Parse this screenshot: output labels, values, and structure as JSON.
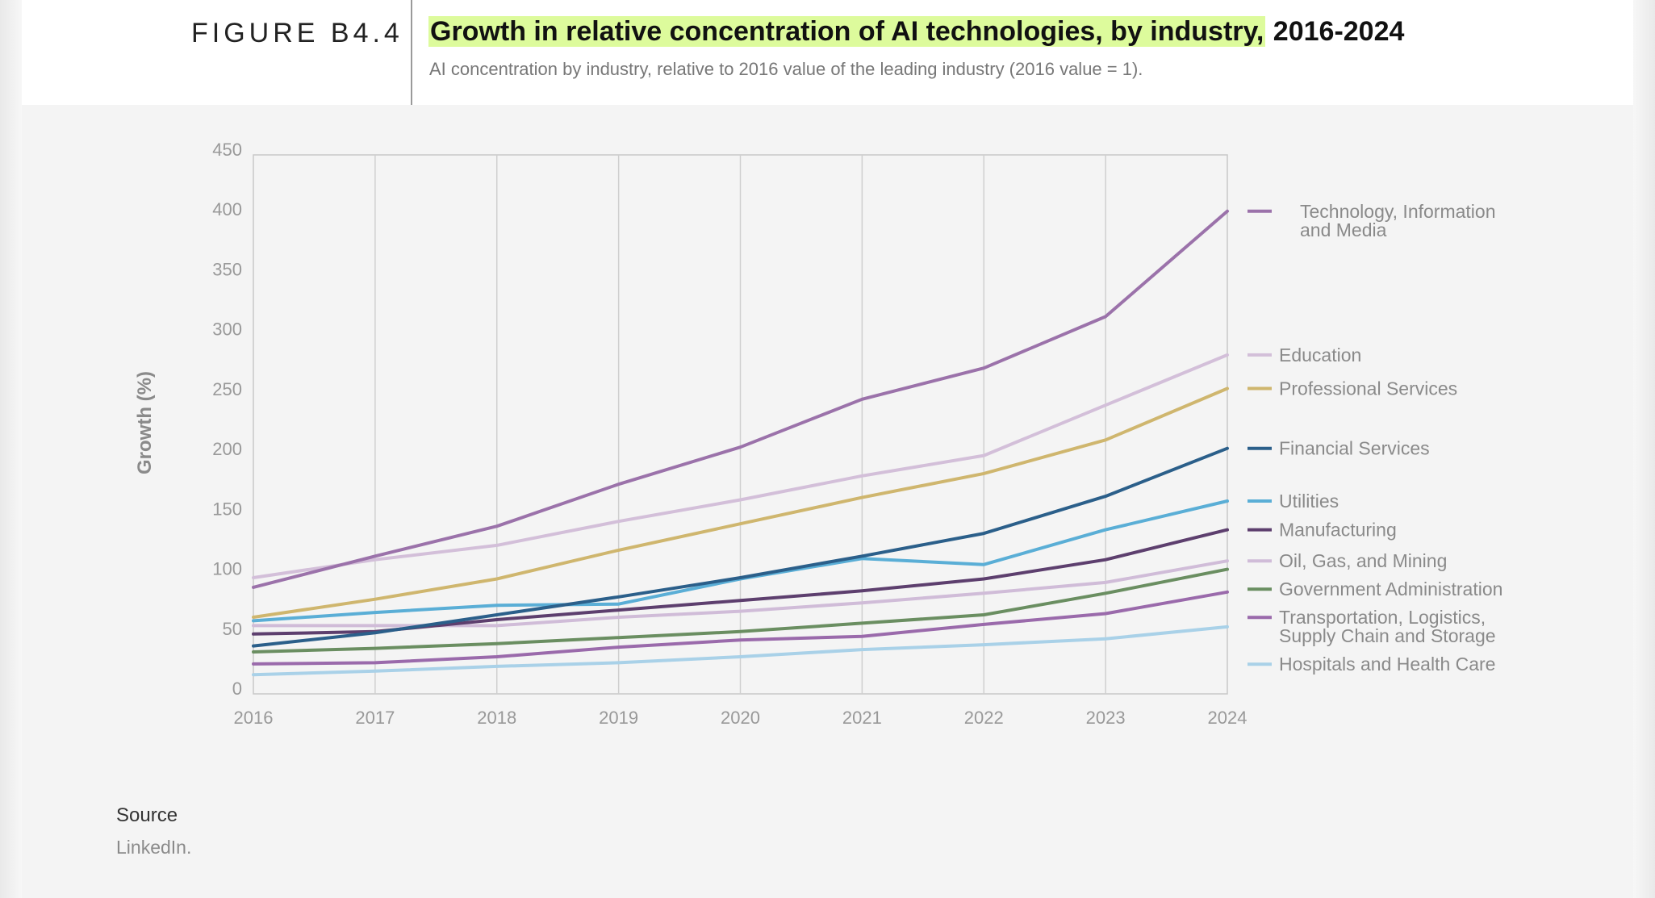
{
  "figure_label": "FIGURE B4.4",
  "title_highlight": "Growth in relative concentration of AI technologies, by industry,",
  "title_rest": " 2016-2024",
  "subtitle": "AI concentration by industry, relative to 2016 value of the leading industry (2016 value = 1).",
  "source_label": "Source",
  "source_text": "LinkedIn.",
  "chart_data": {
    "type": "line",
    "title": "Growth in relative concentration of AI technologies, by industry, 2016-2024",
    "xlabel": "",
    "ylabel": "Growth (%)",
    "x": [
      2016,
      2017,
      2018,
      2019,
      2020,
      2021,
      2022,
      2023,
      2024
    ],
    "ylim": [
      0,
      450
    ],
    "yticks": [
      0,
      50,
      100,
      150,
      200,
      250,
      300,
      350,
      400,
      450
    ],
    "grid": "vertical",
    "legend_position": "right",
    "series": [
      {
        "name": "Technology, Information and Media",
        "legend_lines": [
          "Technology, Information",
          "and Media"
        ],
        "color": "#9b72aa",
        "values": [
          89,
          115,
          140,
          175,
          206,
          246,
          272,
          315,
          403
        ]
      },
      {
        "name": "Education",
        "legend_lines": [
          "Education"
        ],
        "color": "#d3bfd9",
        "values": [
          97,
          112,
          124,
          144,
          162,
          182,
          199,
          241,
          283
        ]
      },
      {
        "name": "Professional Services",
        "legend_lines": [
          "Professional Services"
        ],
        "color": "#cfb66e",
        "values": [
          64,
          79,
          96,
          120,
          142,
          164,
          184,
          212,
          255
        ]
      },
      {
        "name": "Financial Services",
        "legend_lines": [
          "Financial Services"
        ],
        "color": "#2b5f8a",
        "values": [
          40,
          51,
          66,
          81,
          97,
          115,
          134,
          165,
          205
        ]
      },
      {
        "name": "Utilities",
        "legend_lines": [
          "Utilities"
        ],
        "color": "#5aaed6",
        "values": [
          61,
          68,
          74,
          75,
          96,
          113,
          108,
          137,
          161
        ]
      },
      {
        "name": "Manufacturing",
        "legend_lines": [
          "Manufacturing"
        ],
        "color": "#5d3f6e",
        "values": [
          50,
          52,
          62,
          70,
          78,
          86,
          96,
          112,
          137
        ]
      },
      {
        "name": "Oil, Gas, and Mining",
        "legend_lines": [
          "Oil, Gas, and Mining"
        ],
        "color": "#d0bcd8",
        "values": [
          57,
          57,
          57,
          64,
          69,
          76,
          84,
          93,
          111
        ]
      },
      {
        "name": "Government Administration",
        "legend_lines": [
          "Government Administration"
        ],
        "color": "#6a8e61",
        "values": [
          35,
          38,
          42,
          47,
          52,
          59,
          66,
          84,
          104
        ]
      },
      {
        "name": "Transportation, Logistics, Supply Chain and Storage",
        "legend_lines": [
          "Transportation, Logistics,",
          "Supply Chain and Storage"
        ],
        "color": "#9a6aab",
        "values": [
          25,
          26,
          31,
          39,
          45,
          48,
          58,
          67,
          85
        ]
      },
      {
        "name": "Hospitals and Health Care",
        "legend_lines": [
          "Hospitals and Health Care"
        ],
        "color": "#a9d1e8",
        "values": [
          16,
          19,
          23,
          26,
          31,
          37,
          41,
          46,
          56
        ]
      }
    ]
  }
}
